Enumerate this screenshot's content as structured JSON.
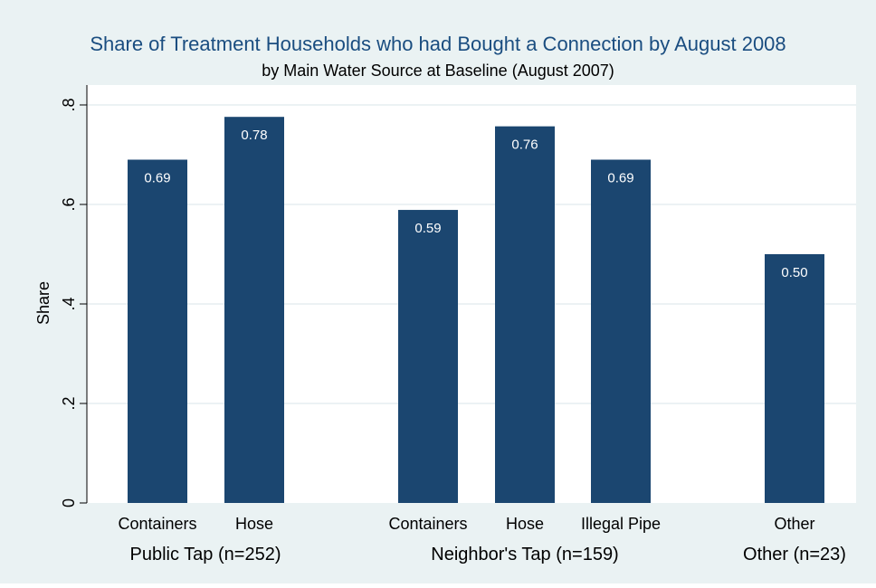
{
  "chart_data": {
    "type": "bar",
    "title": "Share of Treatment Households who had Bought a Connection by August 2008",
    "subtitle": "by Main Water Source at Baseline (August 2007)",
    "ylabel": "Share",
    "ylim": [
      0,
      0.8
    ],
    "yticks": [
      {
        "value": 0,
        "label": "0"
      },
      {
        "value": 0.2,
        "label": ".2"
      },
      {
        "value": 0.4,
        "label": ".4"
      },
      {
        "value": 0.6,
        "label": ".6"
      },
      {
        "value": 0.8,
        "label": ".8"
      }
    ],
    "grid": true,
    "categories": [
      "Containers",
      "Hose",
      "Containers",
      "Hose",
      "Illegal  Pipe",
      "Other"
    ],
    "groups": [
      "Public Tap (n=252)",
      "Public Tap (n=252)",
      "Neighbor's Tap (n=159)",
      "Neighbor's Tap (n=159)",
      "Neighbor's Tap (n=159)",
      "Other (n=23)"
    ],
    "values": [
      0.69,
      0.776,
      0.589,
      0.757,
      0.69,
      0.5
    ],
    "value_labels": [
      "0.69",
      "0.78",
      "0.59",
      "0.76",
      "0.69",
      "0.50"
    ],
    "group_labels": [
      "Public Tap (n=252)",
      "Neighbor's Tap (n=159)",
      "Other (n=23)"
    ],
    "colors": {
      "bar": "#1b4670",
      "title": "#1a4d80",
      "plot_background": "#ffffff",
      "outer_background": "#eaf2f3",
      "grid": "#e6eef0"
    }
  }
}
